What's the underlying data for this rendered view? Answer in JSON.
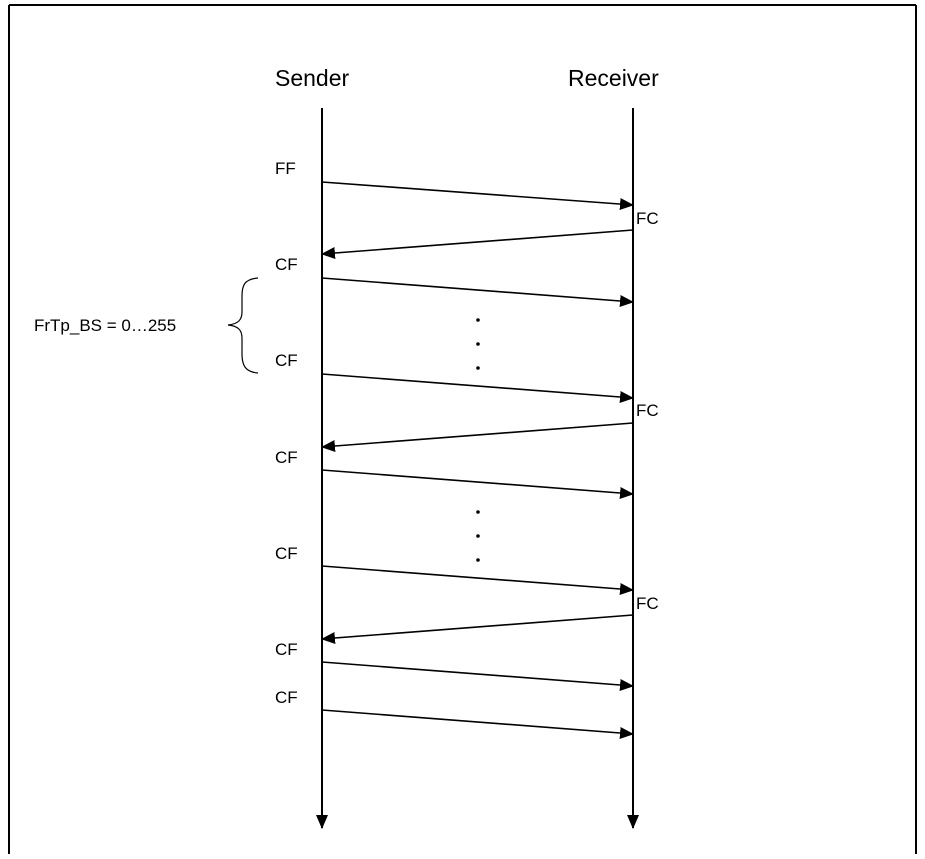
{
  "diagram": {
    "sender_label": "Sender",
    "receiver_label": "Receiver",
    "brace_label": "FrTp_BS = 0…255",
    "messages": [
      {
        "label": "FF",
        "from": "sender"
      },
      {
        "label": "FC",
        "from": "receiver"
      },
      {
        "label": "CF",
        "from": "sender"
      },
      {
        "label": "CF",
        "from": "sender"
      },
      {
        "label": "FC",
        "from": "receiver"
      },
      {
        "label": "CF",
        "from": "sender"
      },
      {
        "label": "CF",
        "from": "sender"
      },
      {
        "label": "FC",
        "from": "receiver"
      },
      {
        "label": "CF",
        "from": "sender"
      },
      {
        "label": "CF",
        "from": "sender"
      }
    ],
    "colors": {
      "line": "#000000",
      "border": "#000000",
      "background": "#ffffff"
    }
  }
}
